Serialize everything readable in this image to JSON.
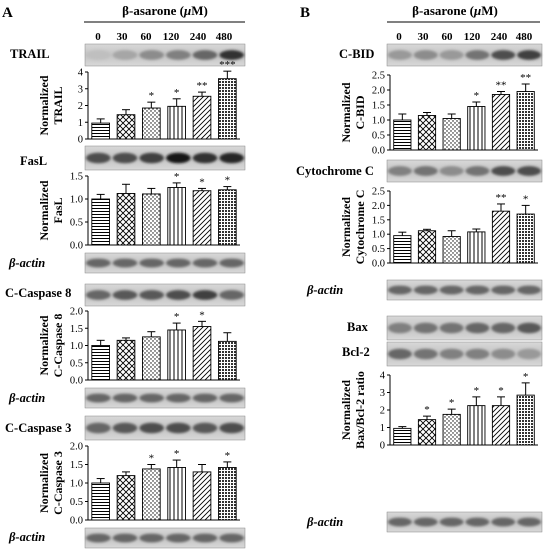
{
  "panels": [
    {
      "letter": "A",
      "treatment": "β-asarone (",
      "treatment_unit_italic": "μ",
      "treatment_unit_rest": "M)",
      "concentrations": [
        "0",
        "30",
        "60",
        "120",
        "240",
        "480"
      ]
    },
    {
      "letter": "B",
      "treatment": "β-asarone (",
      "treatment_unit_italic": "μ",
      "treatment_unit_rest": "M)",
      "concentrations": [
        "0",
        "30",
        "60",
        "120",
        "240",
        "480"
      ]
    }
  ],
  "blot_labels": {
    "trail": "TRAIL",
    "fasl": "FasL",
    "actin_a1": "β-actin",
    "ccasp8": "C-Caspase 8",
    "actin_a2": "β-actin",
    "ccasp3": "C-Caspase 3",
    "actin_a3": "β-actin",
    "cbid": "C-BID",
    "cytc": "Cytochrome C",
    "actin_b1": "β-actin",
    "bax": "Bax",
    "bcl2": "Bcl-2",
    "actin_b2": "β-actin"
  },
  "chart_data": [
    {
      "type": "bar",
      "ylabel": [
        "Normalized",
        "TRAIL"
      ],
      "ylim": [
        0,
        4
      ],
      "ticks": [
        "0",
        "1",
        "2",
        "3",
        "4"
      ],
      "categories": [
        "0",
        "30",
        "60",
        "120",
        "240",
        "480"
      ],
      "values": [
        0.95,
        1.45,
        1.85,
        1.95,
        2.55,
        3.6
      ],
      "errors": [
        0.25,
        0.3,
        0.35,
        0.45,
        0.25,
        0.45
      ],
      "significance": [
        "",
        "",
        "*",
        "*",
        "**",
        "***"
      ]
    },
    {
      "type": "bar",
      "ylabel": [
        "Normalized",
        "FasL"
      ],
      "ylim": [
        0,
        1.5
      ],
      "ticks": [
        "0.0",
        "0.5",
        "1.0",
        "1.5"
      ],
      "categories": [
        "0",
        "30",
        "60",
        "120",
        "240",
        "480"
      ],
      "values": [
        1.0,
        1.12,
        1.11,
        1.25,
        1.18,
        1.2
      ],
      "errors": [
        0.1,
        0.2,
        0.12,
        0.1,
        0.05,
        0.07
      ],
      "significance": [
        "",
        "",
        "",
        "*",
        "*",
        "*"
      ]
    },
    {
      "type": "bar",
      "ylabel": [
        "Normalized",
        "C-Caspase 8"
      ],
      "ylim": [
        0,
        2.0
      ],
      "ticks": [
        "0.0",
        "0.5",
        "1.0",
        "1.5",
        "2.0"
      ],
      "categories": [
        "0",
        "30",
        "60",
        "120",
        "240",
        "480"
      ],
      "values": [
        1.0,
        1.15,
        1.25,
        1.45,
        1.55,
        1.12
      ],
      "errors": [
        0.15,
        0.07,
        0.15,
        0.2,
        0.15,
        0.25
      ],
      "significance": [
        "",
        "",
        "",
        "*",
        "*",
        ""
      ]
    },
    {
      "type": "bar",
      "ylabel": [
        "Normalized",
        "C-Caspase 3"
      ],
      "ylim": [
        0,
        2.0
      ],
      "ticks": [
        "0.0",
        "0.5",
        "1.0",
        "1.5",
        "2.0"
      ],
      "categories": [
        "0",
        "30",
        "60",
        "120",
        "240",
        "480"
      ],
      "values": [
        1.0,
        1.2,
        1.38,
        1.42,
        1.3,
        1.42
      ],
      "errors": [
        0.12,
        0.1,
        0.12,
        0.2,
        0.2,
        0.15
      ],
      "significance": [
        "",
        "",
        "*",
        "*",
        "",
        "*"
      ]
    },
    {
      "type": "bar",
      "ylabel": [
        "Normalized",
        "C-BID"
      ],
      "ylim": [
        0,
        2.5
      ],
      "ticks": [
        "0.0",
        "0.5",
        "1.0",
        "1.5",
        "2.0",
        "2.5"
      ],
      "categories": [
        "0",
        "30",
        "60",
        "120",
        "240",
        "480"
      ],
      "values": [
        1.0,
        1.15,
        1.05,
        1.45,
        1.85,
        1.95
      ],
      "errors": [
        0.2,
        0.1,
        0.15,
        0.15,
        0.1,
        0.25
      ],
      "significance": [
        "",
        "",
        "",
        "*",
        "**",
        "**"
      ]
    },
    {
      "type": "bar",
      "ylabel": [
        "Normalized",
        "Cytochrome C"
      ],
      "ylim": [
        0,
        2.5
      ],
      "ticks": [
        "0.0",
        "0.5",
        "1.0",
        "1.5",
        "2.0",
        "2.5"
      ],
      "categories": [
        "0",
        "30",
        "60",
        "120",
        "240",
        "480"
      ],
      "values": [
        0.95,
        1.12,
        0.92,
        1.08,
        1.8,
        1.7
      ],
      "errors": [
        0.12,
        0.05,
        0.2,
        0.1,
        0.25,
        0.3
      ],
      "significance": [
        "",
        "",
        "",
        "",
        "**",
        "*"
      ]
    },
    {
      "type": "bar",
      "ylabel": [
        "Normalized",
        "Bax/Bcl-2 ratio"
      ],
      "ylim": [
        0,
        4
      ],
      "ticks": [
        "0",
        "1",
        "2",
        "3",
        "4"
      ],
      "categories": [
        "0",
        "30",
        "60",
        "120",
        "240",
        "480"
      ],
      "values": [
        0.95,
        1.45,
        1.75,
        2.25,
        2.25,
        2.85
      ],
      "errors": [
        0.1,
        0.2,
        0.3,
        0.5,
        0.5,
        0.7
      ],
      "significance": [
        "",
        "*",
        "*",
        "*",
        "*",
        "*"
      ]
    }
  ]
}
